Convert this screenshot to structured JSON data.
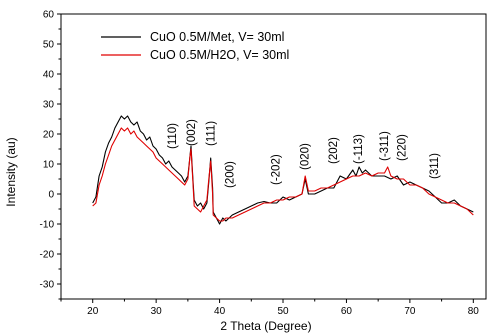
{
  "chart_data": {
    "type": "line",
    "xlabel": "2 Theta (Degree)",
    "ylabel": "Intensity (au)",
    "xlim": [
      15,
      82
    ],
    "ylim": [
      -35,
      60
    ],
    "x_ticks": [
      20,
      30,
      40,
      50,
      60,
      70,
      80
    ],
    "y_ticks": [
      -30,
      -20,
      -10,
      0,
      10,
      20,
      30,
      40,
      50,
      60
    ],
    "grid": false,
    "legend_position": "top-left",
    "series": [
      {
        "name": "CuO 0.5M/Met, V= 30ml",
        "color": "#000000",
        "points": [
          [
            20,
            -3
          ],
          [
            20.5,
            -1
          ],
          [
            21,
            6
          ],
          [
            21.5,
            9
          ],
          [
            22,
            14
          ],
          [
            22.5,
            17
          ],
          [
            23,
            19
          ],
          [
            23.5,
            22
          ],
          [
            24,
            24
          ],
          [
            24.5,
            26
          ],
          [
            25,
            25
          ],
          [
            25.5,
            26
          ],
          [
            26,
            24
          ],
          [
            26.5,
            23
          ],
          [
            27,
            24
          ],
          [
            27.5,
            21
          ],
          [
            28,
            20
          ],
          [
            28.5,
            18
          ],
          [
            29,
            19
          ],
          [
            29.5,
            16
          ],
          [
            30,
            15
          ],
          [
            30.5,
            13
          ],
          [
            31,
            12
          ],
          [
            31.5,
            10
          ],
          [
            32,
            11
          ],
          [
            32.5,
            9
          ],
          [
            33,
            8
          ],
          [
            33.5,
            7
          ],
          [
            34,
            6
          ],
          [
            34.5,
            4
          ],
          [
            35,
            6
          ],
          [
            35.3,
            12
          ],
          [
            35.5,
            16
          ],
          [
            35.8,
            5
          ],
          [
            36,
            -2
          ],
          [
            36.5,
            -4
          ],
          [
            37,
            -3
          ],
          [
            37.5,
            -5
          ],
          [
            38,
            -3
          ],
          [
            38.3,
            4
          ],
          [
            38.6,
            12
          ],
          [
            38.9,
            2
          ],
          [
            39,
            -6
          ],
          [
            39.5,
            -8
          ],
          [
            40,
            -10
          ],
          [
            40.5,
            -8
          ],
          [
            41,
            -9
          ],
          [
            42,
            -7
          ],
          [
            43,
            -6
          ],
          [
            44,
            -5
          ],
          [
            45,
            -4
          ],
          [
            46,
            -3
          ],
          [
            47,
            -2.5
          ],
          [
            48,
            -3
          ],
          [
            49,
            -3
          ],
          [
            50,
            -1
          ],
          [
            51,
            -2
          ],
          [
            52,
            -1
          ],
          [
            53,
            0
          ],
          [
            53.5,
            5
          ],
          [
            54,
            0
          ],
          [
            55,
            0
          ],
          [
            56,
            1
          ],
          [
            57,
            2
          ],
          [
            58,
            2
          ],
          [
            59,
            6
          ],
          [
            60,
            5
          ],
          [
            61,
            8
          ],
          [
            61.5,
            6
          ],
          [
            62,
            9
          ],
          [
            62.5,
            7
          ],
          [
            63,
            8
          ],
          [
            64,
            6
          ],
          [
            65,
            6
          ],
          [
            66,
            6
          ],
          [
            67,
            5
          ],
          [
            68,
            6
          ],
          [
            69,
            3
          ],
          [
            70,
            4
          ],
          [
            71,
            3
          ],
          [
            72,
            2
          ],
          [
            73,
            1
          ],
          [
            74,
            -1
          ],
          [
            75,
            -3
          ],
          [
            76,
            -3
          ],
          [
            77,
            -2
          ],
          [
            78,
            -4
          ],
          [
            79,
            -5
          ],
          [
            80,
            -6
          ]
        ]
      },
      {
        "name": "CuO 0.5M/H2O, V= 30ml",
        "color": "#e00000",
        "points": [
          [
            20,
            -4
          ],
          [
            20.5,
            -3
          ],
          [
            21,
            3
          ],
          [
            21.5,
            6
          ],
          [
            22,
            10
          ],
          [
            22.5,
            13
          ],
          [
            23,
            16
          ],
          [
            23.5,
            18
          ],
          [
            24,
            20
          ],
          [
            24.5,
            22
          ],
          [
            25,
            21
          ],
          [
            25.5,
            22
          ],
          [
            26,
            20
          ],
          [
            26.5,
            21
          ],
          [
            27,
            19
          ],
          [
            27.5,
            18
          ],
          [
            28,
            17
          ],
          [
            28.5,
            16
          ],
          [
            29,
            15
          ],
          [
            29.5,
            14
          ],
          [
            30,
            12
          ],
          [
            30.5,
            11
          ],
          [
            31,
            10
          ],
          [
            31.5,
            9
          ],
          [
            32,
            8
          ],
          [
            32.5,
            7
          ],
          [
            33,
            6
          ],
          [
            33.5,
            5
          ],
          [
            34,
            4
          ],
          [
            34.5,
            3
          ],
          [
            35,
            5
          ],
          [
            35.3,
            12
          ],
          [
            35.5,
            15
          ],
          [
            35.8,
            4
          ],
          [
            36,
            -4
          ],
          [
            36.5,
            -5
          ],
          [
            37,
            -6
          ],
          [
            37.5,
            -4
          ],
          [
            38,
            -2
          ],
          [
            38.3,
            5
          ],
          [
            38.6,
            11
          ],
          [
            38.9,
            0
          ],
          [
            39,
            -7
          ],
          [
            39.5,
            -8
          ],
          [
            40,
            -9
          ],
          [
            40.5,
            -9
          ],
          [
            41,
            -8
          ],
          [
            42,
            -8
          ],
          [
            43,
            -7
          ],
          [
            44,
            -6
          ],
          [
            45,
            -5
          ],
          [
            46,
            -4
          ],
          [
            47,
            -3
          ],
          [
            48,
            -3
          ],
          [
            49,
            -2
          ],
          [
            50,
            -2
          ],
          [
            51,
            -1
          ],
          [
            52,
            -1
          ],
          [
            53,
            0
          ],
          [
            53.5,
            6
          ],
          [
            54,
            1
          ],
          [
            55,
            1
          ],
          [
            56,
            2
          ],
          [
            57,
            2
          ],
          [
            58,
            3
          ],
          [
            59,
            4
          ],
          [
            60,
            5
          ],
          [
            61,
            6
          ],
          [
            62,
            6
          ],
          [
            63,
            7
          ],
          [
            64,
            6
          ],
          [
            65,
            7
          ],
          [
            66,
            7
          ],
          [
            66.5,
            9
          ],
          [
            67,
            6
          ],
          [
            68,
            5
          ],
          [
            69,
            5
          ],
          [
            70,
            3
          ],
          [
            71,
            3
          ],
          [
            72,
            2
          ],
          [
            73,
            0
          ],
          [
            74,
            -1
          ],
          [
            75,
            -2
          ],
          [
            76,
            -3
          ],
          [
            77,
            -3
          ],
          [
            78,
            -4
          ],
          [
            79,
            -5
          ],
          [
            80,
            -7
          ]
        ]
      }
    ],
    "annotations": [
      {
        "text": "(110)",
        "x": 32.5,
        "y": 15
      },
      {
        "text": "(002)",
        "x": 35.5,
        "y": 16
      },
      {
        "text": "(111)",
        "x": 38.6,
        "y": 16
      },
      {
        "text": "(200)",
        "x": 41.6,
        "y": 2
      },
      {
        "text": "(-202)",
        "x": 48.8,
        "y": 3
      },
      {
        "text": "(020)",
        "x": 53.4,
        "y": 8
      },
      {
        "text": "(202)",
        "x": 57.9,
        "y": 10
      },
      {
        "text": "(-113)",
        "x": 61.8,
        "y": 10
      },
      {
        "text": "(-311)",
        "x": 65.9,
        "y": 11
      },
      {
        "text": "(220)",
        "x": 68.7,
        "y": 11
      },
      {
        "text": "(311)",
        "x": 73.8,
        "y": 5
      }
    ]
  }
}
